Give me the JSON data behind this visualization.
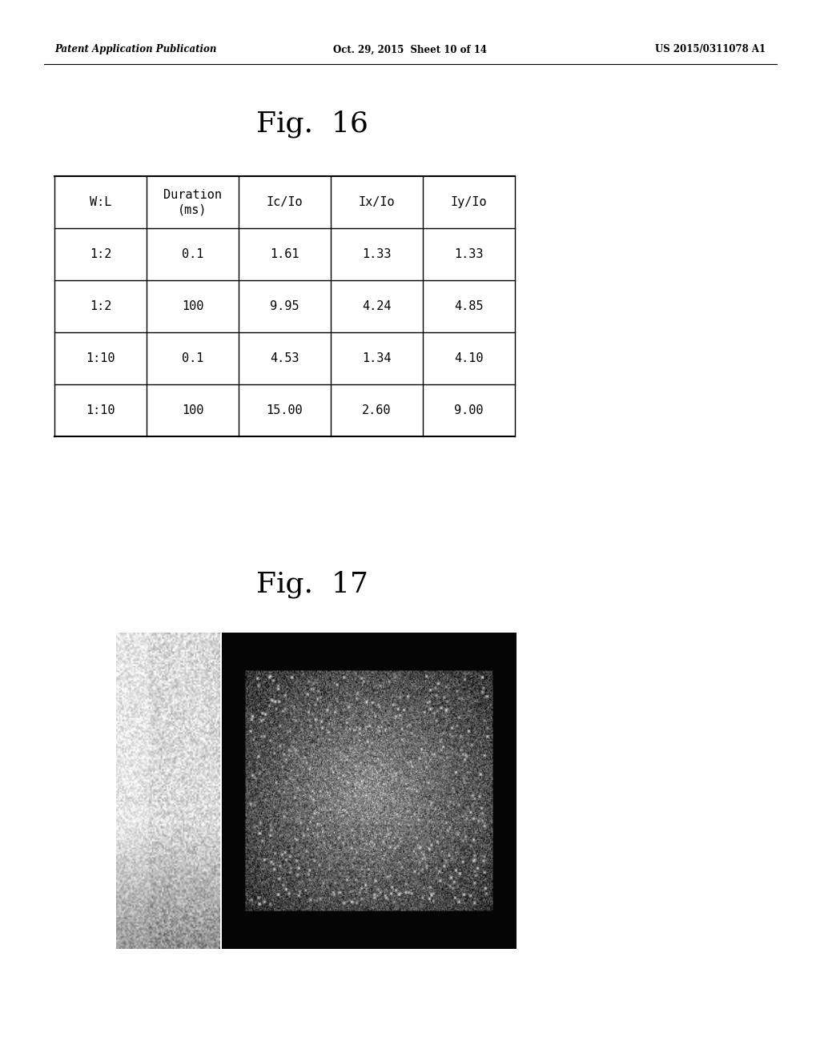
{
  "background_color": "#ffffff",
  "header_left": "Patent Application Publication",
  "header_center": "Oct. 29, 2015  Sheet 10 of 14",
  "header_right": "US 2015/0311078 A1",
  "fig16_title": "Fig.  16",
  "fig17_title": "Fig.  17",
  "table_headers": [
    "W:L",
    "Duration\n(ms)",
    "Ic/Io",
    "Ix/Io",
    "Iy/Io"
  ],
  "table_data": [
    [
      "1:2",
      "0.1",
      "1.61",
      "1.33",
      "1.33"
    ],
    [
      "1:2",
      "100",
      "9.95",
      "4.24",
      "4.85"
    ],
    [
      "1:10",
      "0.1",
      "4.53",
      "1.34",
      "4.10"
    ],
    [
      "1:10",
      "100",
      "15.00",
      "2.60",
      "9.00"
    ]
  ],
  "header_fontsize": 8.5,
  "fig_title_fontsize": 26,
  "table_fontsize": 11
}
